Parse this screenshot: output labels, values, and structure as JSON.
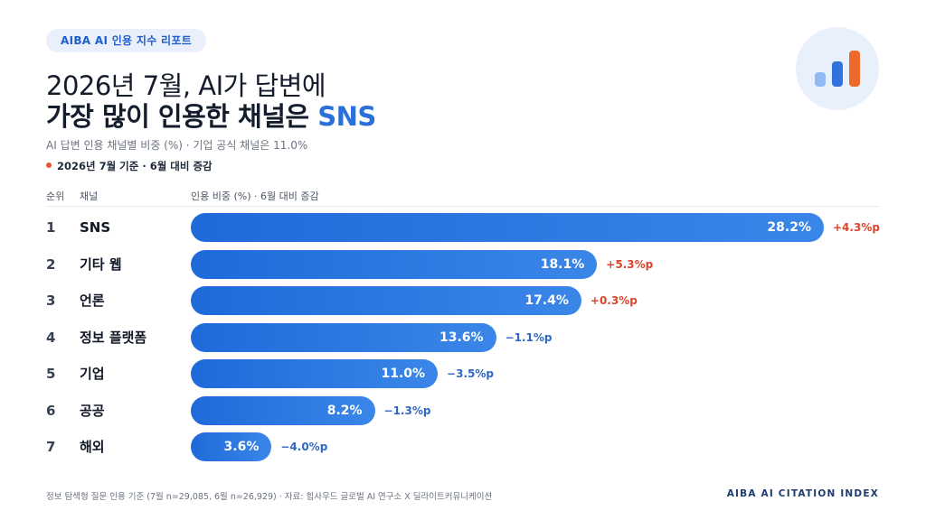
{
  "badge": "AIBA AI 인용 지수 리포트",
  "title": {
    "line1": "2026년 7월, AI가 답변에",
    "line2_prefix": "가장 많이 인용한 채널은 ",
    "line2_highlight": "SNS"
  },
  "subtitle": "AI 답변 인용 채널별 비중 (%) · 기업 공식 채널은 11.0%",
  "note": "2026년 7월 기준 · 6월 대비 증감",
  "table_headers": {
    "rank": "순위",
    "channel": "채널",
    "metric": "인용 비중 (%) · 6월 대비 증감"
  },
  "colors": {
    "accent": "#2b6fd9",
    "bar_start": "#1f6ad9",
    "bar_end": "#3a86e8",
    "increase": "#d9462b",
    "decrease": "#2f68c4",
    "marker": "#e4572e"
  },
  "chart_data": {
    "type": "bar",
    "orientation": "horizontal",
    "categories": [
      "SNS",
      "기타 웹",
      "언론",
      "정보 플랫폼",
      "기업",
      "공공",
      "해외"
    ],
    "ranks": [
      "1",
      "2",
      "3",
      "4",
      "5",
      "6",
      "7"
    ],
    "values": [
      28.2,
      18.1,
      17.4,
      13.6,
      11.0,
      8.2,
      3.6
    ],
    "value_labels": [
      "28.2%",
      "18.1%",
      "17.4%",
      "13.6%",
      "11.0%",
      "8.2%",
      "3.6%"
    ],
    "changes": [
      4.3,
      5.3,
      0.3,
      -1.1,
      -3.5,
      -1.3,
      -4.0
    ],
    "change_labels": [
      "+4.3%p",
      "+5.3%p",
      "+0.3%p",
      "−1.1%p",
      "−3.5%p",
      "−1.3%p",
      "−4.0%p"
    ],
    "xlim": [
      0,
      28.2
    ],
    "grid": false
  },
  "footer": {
    "source": "정보 탐색형 질문 인용 기준 (7월 n=29,085, 6월 n=26,929) · 자료: 힙사우드 글로벌 AI 연구소 X 딜라이트커뮤니케이션",
    "brand": "AIBA AI CITATION INDEX"
  }
}
